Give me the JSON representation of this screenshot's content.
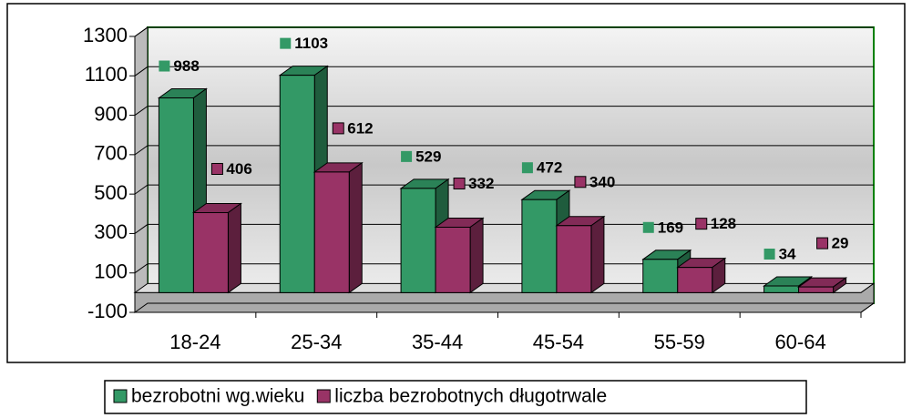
{
  "chart_data": {
    "type": "bar",
    "categories": [
      "18-24",
      "25-34",
      "35-44",
      "45-54",
      "55-59",
      "60-64"
    ],
    "series": [
      {
        "name": "bezrobotni wg.wieku",
        "color": "#339966",
        "values": [
          988,
          1103,
          529,
          472,
          169,
          34
        ]
      },
      {
        "name": "liczba bezrobotnych długotrwale",
        "color": "#993366",
        "values": [
          406,
          612,
          332,
          340,
          128,
          29
        ]
      }
    ],
    "ylim": [
      -100,
      1300
    ],
    "yticks": [
      -100,
      100,
      300,
      500,
      700,
      900,
      1100,
      1300
    ],
    "grid": true,
    "legend": "bottom"
  }
}
